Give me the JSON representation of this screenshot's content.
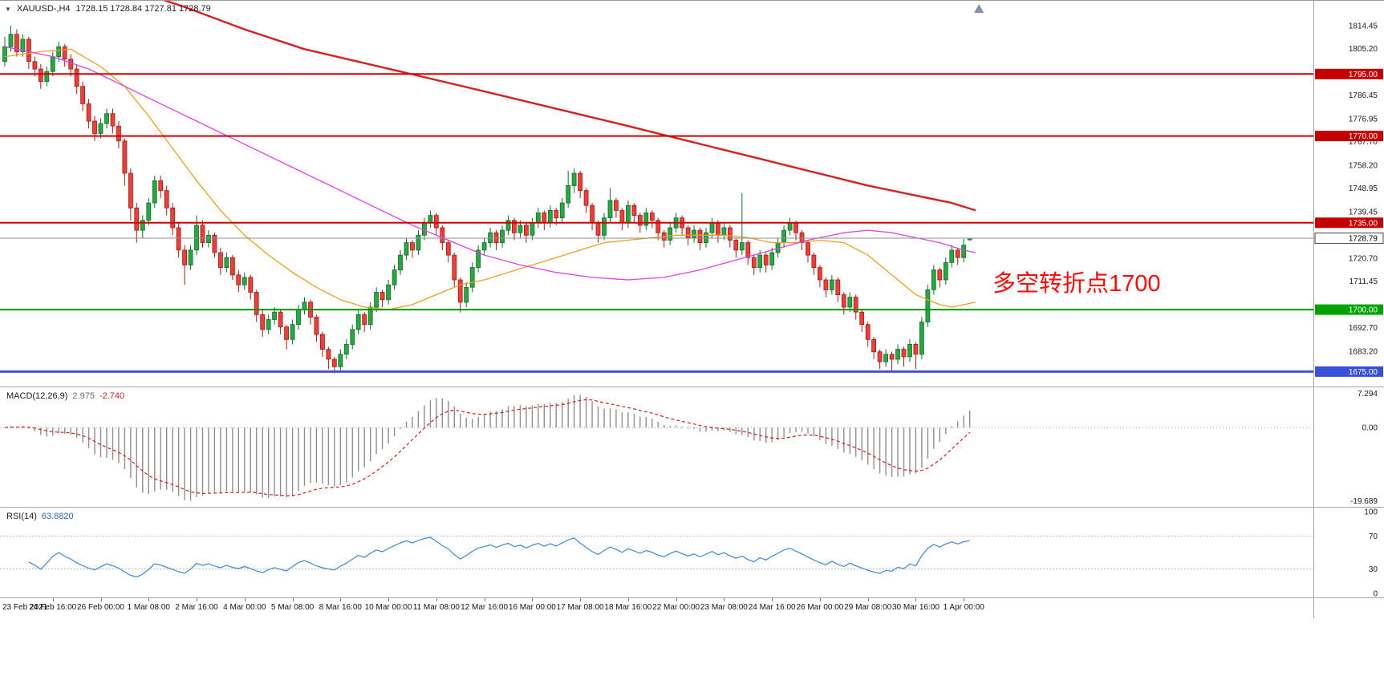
{
  "header": {
    "collapse_icon": "▼",
    "symbol": "XAUUSD-,H4",
    "ohlc": "1728.15 1728.84 1727.81 1728.79"
  },
  "annotation": {
    "text": "多空转折点1700",
    "color": "#fa0a0a"
  },
  "indicators": {
    "macd": {
      "name": "MACD(12,26,9)",
      "main_value": "2.975",
      "signal_value": "-2.740",
      "scale_top": "7.294",
      "scale_zero": "0.00",
      "scale_bottom": "-19.689"
    },
    "rsi": {
      "name": "RSI(14)",
      "value": "63.8820",
      "scale_values": [
        100,
        70,
        30,
        0
      ],
      "scale_labels": [
        "100",
        "70",
        "30",
        "0"
      ],
      "level_lines": [
        70,
        30
      ]
    }
  },
  "price_axis": {
    "ticks": [
      1814.45,
      1805.2,
      1786.45,
      1776.95,
      1767.7,
      1758.2,
      1748.95,
      1739.45,
      1720.7,
      1711.45,
      1692.7,
      1683.2
    ],
    "tick_labels": [
      "1814.45",
      "1805.20",
      "1786.45",
      "1776.95",
      "1767.70",
      "1758.20",
      "1748.95",
      "1739.45",
      "1720.70",
      "1711.45",
      "1692.70",
      "1683.20"
    ]
  },
  "chart_data": {
    "type": "candlestick",
    "symbol": "XAUUSD-",
    "timeframe": "H4",
    "ylim": [
      1669.0,
      1824.5
    ],
    "current_price": 1728.79,
    "current_tag": {
      "label": "1728.79",
      "bg": "#ffffff",
      "fg": "#000000",
      "border": "#444444"
    },
    "up_color": "#28a745",
    "up_border": "#146b2a",
    "down_color": "#e8403a",
    "down_border": "#9e1c16",
    "levels": [
      {
        "price": 1795.0,
        "label": "1795.00",
        "color": "#d10000",
        "tag_bg": "#c40000",
        "width": 2
      },
      {
        "price": 1770.0,
        "label": "1770.00",
        "color": "#d10000",
        "tag_bg": "#c40000",
        "width": 2
      },
      {
        "price": 1735.0,
        "label": "1735.00",
        "color": "#d10000",
        "tag_bg": "#c40000",
        "width": 2
      },
      {
        "price": 1700.0,
        "label": "1700.00",
        "color": "#009900",
        "tag_bg": "#00a300",
        "width": 2
      },
      {
        "price": 1675.0,
        "label": "1675.00",
        "color": "#4053d6",
        "tag_bg": "#3a50d9",
        "width": 3
      }
    ],
    "candles": [
      [
        1800,
        1810,
        1798,
        1806
      ],
      [
        1806,
        1814.4,
        1804,
        1811
      ],
      [
        1811,
        1813,
        1802,
        1804
      ],
      [
        1804,
        1811,
        1802,
        1809
      ],
      [
        1809,
        1810,
        1797,
        1800
      ],
      [
        1800,
        1802,
        1794,
        1797
      ],
      [
        1797,
        1799,
        1789,
        1792
      ],
      [
        1792,
        1798,
        1790,
        1796
      ],
      [
        1796,
        1804,
        1794,
        1802
      ],
      [
        1802,
        1808,
        1800,
        1806
      ],
      [
        1806,
        1807,
        1798,
        1801
      ],
      [
        1801,
        1803,
        1794,
        1797
      ],
      [
        1797,
        1799,
        1787,
        1790
      ],
      [
        1790,
        1792,
        1780,
        1783
      ],
      [
        1783,
        1785,
        1773,
        1776
      ],
      [
        1776,
        1778,
        1768,
        1771
      ],
      [
        1771,
        1777,
        1769,
        1775
      ],
      [
        1775,
        1781,
        1773,
        1779
      ],
      [
        1779,
        1781,
        1771,
        1774
      ],
      [
        1774,
        1776,
        1765,
        1768
      ],
      [
        1768,
        1769,
        1750,
        1755
      ],
      [
        1755,
        1757,
        1736,
        1741
      ],
      [
        1741,
        1743,
        1727,
        1732
      ],
      [
        1732,
        1738,
        1729,
        1736
      ],
      [
        1736,
        1745,
        1734,
        1743
      ],
      [
        1743,
        1754,
        1741,
        1752
      ],
      [
        1752,
        1754,
        1745,
        1748
      ],
      [
        1748,
        1750,
        1738,
        1741
      ],
      [
        1741,
        1743,
        1730,
        1733
      ],
      [
        1733,
        1735,
        1721,
        1724
      ],
      [
        1724,
        1726,
        1710,
        1718
      ],
      [
        1718,
        1726,
        1716,
        1724
      ],
      [
        1724,
        1738,
        1722,
        1734
      ],
      [
        1734,
        1736,
        1725,
        1727
      ],
      [
        1727,
        1732,
        1725,
        1730
      ],
      [
        1730,
        1731,
        1721,
        1723
      ],
      [
        1723,
        1725,
        1714,
        1717
      ],
      [
        1717,
        1723,
        1715,
        1721
      ],
      [
        1721,
        1722,
        1712,
        1714
      ],
      [
        1714,
        1716,
        1707,
        1710
      ],
      [
        1710,
        1715,
        1708,
        1713
      ],
      [
        1713,
        1714,
        1704,
        1707
      ],
      [
        1707,
        1708,
        1695,
        1698
      ],
      [
        1698,
        1700,
        1689,
        1692
      ],
      [
        1692,
        1698,
        1690,
        1696
      ],
      [
        1696,
        1701,
        1694,
        1699
      ],
      [
        1699,
        1700,
        1690,
        1693
      ],
      [
        1693,
        1694,
        1684,
        1688
      ],
      [
        1688,
        1696,
        1686,
        1694
      ],
      [
        1694,
        1702,
        1692,
        1700
      ],
      [
        1700,
        1705,
        1698,
        1703
      ],
      [
        1703,
        1704,
        1694,
        1697
      ],
      [
        1697,
        1698,
        1687,
        1690
      ],
      [
        1690,
        1691,
        1681,
        1684
      ],
      [
        1684,
        1685,
        1676,
        1680
      ],
      [
        1680,
        1681,
        1674.3,
        1677
      ],
      [
        1677,
        1684,
        1675.5,
        1682
      ],
      [
        1682,
        1688,
        1680,
        1686
      ],
      [
        1686,
        1694,
        1684,
        1692
      ],
      [
        1692,
        1700,
        1690,
        1698
      ],
      [
        1698,
        1699,
        1691,
        1694
      ],
      [
        1694,
        1703,
        1692,
        1701
      ],
      [
        1701,
        1709,
        1699,
        1707
      ],
      [
        1707,
        1708,
        1701,
        1704
      ],
      [
        1704,
        1712,
        1702,
        1710
      ],
      [
        1710,
        1718,
        1708,
        1716
      ],
      [
        1716,
        1724,
        1714,
        1722
      ],
      [
        1722,
        1729,
        1720,
        1727
      ],
      [
        1727,
        1728,
        1721,
        1724
      ],
      [
        1724,
        1732,
        1722,
        1730
      ],
      [
        1730,
        1737,
        1728,
        1735
      ],
      [
        1735,
        1740,
        1733,
        1738
      ],
      [
        1738,
        1739,
        1730,
        1733
      ],
      [
        1733,
        1734,
        1724,
        1727
      ],
      [
        1727,
        1728,
        1719,
        1722
      ],
      [
        1722,
        1723,
        1709,
        1712
      ],
      [
        1712,
        1713,
        1698.8,
        1703
      ],
      [
        1703,
        1711,
        1701,
        1709
      ],
      [
        1709,
        1719,
        1707,
        1717
      ],
      [
        1717,
        1726,
        1715,
        1724
      ],
      [
        1724,
        1729,
        1722,
        1727
      ],
      [
        1727,
        1733,
        1725,
        1731
      ],
      [
        1731,
        1732,
        1724,
        1727
      ],
      [
        1727,
        1734,
        1725,
        1732
      ],
      [
        1732,
        1738,
        1730,
        1736
      ],
      [
        1736,
        1737,
        1728,
        1731
      ],
      [
        1731,
        1736,
        1729,
        1734
      ],
      [
        1734,
        1735,
        1727,
        1730
      ],
      [
        1730,
        1737,
        1728,
        1735
      ],
      [
        1735,
        1741,
        1733,
        1739
      ],
      [
        1739,
        1740,
        1732,
        1735
      ],
      [
        1735,
        1742,
        1733,
        1740
      ],
      [
        1740,
        1741,
        1734,
        1737
      ],
      [
        1737,
        1745,
        1735,
        1743
      ],
      [
        1743,
        1756,
        1741,
        1750
      ],
      [
        1750,
        1757,
        1747,
        1755
      ],
      [
        1755,
        1756,
        1745,
        1748
      ],
      [
        1748,
        1749,
        1739,
        1742
      ],
      [
        1742,
        1743,
        1732,
        1735
      ],
      [
        1735,
        1736,
        1727,
        1730
      ],
      [
        1730,
        1739,
        1728,
        1737
      ],
      [
        1737,
        1749,
        1735,
        1744
      ],
      [
        1744,
        1745,
        1737,
        1740
      ],
      [
        1740,
        1741,
        1732,
        1735
      ],
      [
        1735,
        1744,
        1733,
        1742
      ],
      [
        1742,
        1743,
        1735,
        1738
      ],
      [
        1738,
        1739,
        1731,
        1734
      ],
      [
        1734,
        1741,
        1732,
        1739
      ],
      [
        1739,
        1740,
        1733,
        1736
      ],
      [
        1736,
        1737,
        1728,
        1731
      ],
      [
        1731,
        1732,
        1725,
        1728
      ],
      [
        1728,
        1735,
        1726,
        1733
      ],
      [
        1733,
        1739,
        1731,
        1737
      ],
      [
        1737,
        1738,
        1730,
        1733
      ],
      [
        1733,
        1734,
        1726,
        1729
      ],
      [
        1729,
        1734,
        1727,
        1732
      ],
      [
        1732,
        1733,
        1724,
        1727
      ],
      [
        1727,
        1733,
        1725,
        1731
      ],
      [
        1731,
        1737,
        1729,
        1735
      ],
      [
        1735,
        1736,
        1727,
        1730
      ],
      [
        1730,
        1735,
        1728,
        1733
      ],
      [
        1733,
        1734,
        1725,
        1728
      ],
      [
        1728,
        1729,
        1721,
        1724
      ],
      [
        1724,
        1747,
        1722,
        1727
      ],
      [
        1727,
        1728,
        1718,
        1721
      ],
      [
        1721,
        1722,
        1714,
        1717
      ],
      [
        1717,
        1724,
        1715,
        1722
      ],
      [
        1722,
        1723,
        1715,
        1718
      ],
      [
        1718,
        1725,
        1716,
        1723
      ],
      [
        1723,
        1729,
        1721,
        1727
      ],
      [
        1727,
        1734,
        1725,
        1732
      ],
      [
        1732,
        1737,
        1730,
        1735
      ],
      [
        1735,
        1736,
        1728,
        1731
      ],
      [
        1731,
        1732,
        1724,
        1727
      ],
      [
        1727,
        1728,
        1719,
        1722
      ],
      [
        1722,
        1723,
        1714,
        1717
      ],
      [
        1717,
        1718,
        1709,
        1712
      ],
      [
        1712,
        1713,
        1705,
        1708
      ],
      [
        1708,
        1714,
        1706,
        1712
      ],
      [
        1712,
        1713,
        1703,
        1706
      ],
      [
        1706,
        1707,
        1698,
        1701
      ],
      [
        1701,
        1707,
        1699,
        1705
      ],
      [
        1705,
        1706,
        1696,
        1699
      ],
      [
        1699,
        1700,
        1691,
        1694
      ],
      [
        1694,
        1695,
        1685,
        1688
      ],
      [
        1688,
        1689,
        1680,
        1683
      ],
      [
        1683,
        1684,
        1676,
        1679
      ],
      [
        1679,
        1684,
        1677,
        1682
      ],
      [
        1682,
        1683,
        1675.5,
        1680
      ],
      [
        1680,
        1686,
        1678,
        1684
      ],
      [
        1684,
        1685,
        1677,
        1681
      ],
      [
        1681,
        1688,
        1679,
        1686
      ],
      [
        1686,
        1687,
        1676,
        1682
      ],
      [
        1682,
        1697,
        1680,
        1695
      ],
      [
        1695,
        1710,
        1693,
        1708
      ],
      [
        1708,
        1718,
        1706,
        1716
      ],
      [
        1716,
        1717,
        1709,
        1712
      ],
      [
        1712,
        1721,
        1710,
        1719
      ],
      [
        1719,
        1726,
        1717,
        1724
      ],
      [
        1724,
        1725,
        1718,
        1721
      ],
      [
        1721,
        1728.5,
        1719,
        1726
      ],
      [
        1728.15,
        1728.84,
        1727.81,
        1728.79
      ]
    ],
    "moving_averages": [
      {
        "name": "fast-ma",
        "color": "#e8a020",
        "width": 1.3,
        "points": [
          [
            0,
            1802
          ],
          [
            6,
            1804
          ],
          [
            11,
            1805
          ],
          [
            16,
            1798
          ],
          [
            20,
            1790
          ],
          [
            24,
            1778
          ],
          [
            28,
            1765
          ],
          [
            32,
            1752
          ],
          [
            36,
            1740
          ],
          [
            40,
            1730
          ],
          [
            44,
            1722
          ],
          [
            48,
            1715
          ],
          [
            52,
            1709
          ],
          [
            56,
            1704
          ],
          [
            60,
            1701
          ],
          [
            64,
            1700
          ],
          [
            68,
            1702
          ],
          [
            72,
            1706
          ],
          [
            76,
            1710
          ],
          [
            80,
            1712
          ],
          [
            84,
            1715
          ],
          [
            88,
            1718
          ],
          [
            92,
            1721
          ],
          [
            96,
            1724
          ],
          [
            100,
            1727
          ],
          [
            104,
            1728
          ],
          [
            108,
            1729
          ],
          [
            112,
            1730
          ],
          [
            120,
            1730
          ],
          [
            124,
            1729
          ],
          [
            128,
            1727
          ],
          [
            132,
            1727
          ],
          [
            136,
            1728
          ],
          [
            140,
            1727
          ],
          [
            144,
            1722
          ],
          [
            148,
            1714
          ],
          [
            152,
            1706
          ],
          [
            156,
            1702
          ],
          [
            158,
            1701
          ],
          [
            160,
            1702
          ],
          [
            162,
            1703
          ]
        ]
      },
      {
        "name": "slow-ma",
        "color": "#e040e0",
        "width": 1.3,
        "points": [
          [
            0,
            1806
          ],
          [
            8,
            1802
          ],
          [
            14,
            1797
          ],
          [
            20,
            1790
          ],
          [
            26,
            1783
          ],
          [
            32,
            1776
          ],
          [
            38,
            1769
          ],
          [
            44,
            1762
          ],
          [
            50,
            1755
          ],
          [
            56,
            1748
          ],
          [
            62,
            1741
          ],
          [
            68,
            1734
          ],
          [
            74,
            1728
          ],
          [
            80,
            1722
          ],
          [
            86,
            1718
          ],
          [
            92,
            1715
          ],
          [
            98,
            1713
          ],
          [
            104,
            1712
          ],
          [
            110,
            1713
          ],
          [
            116,
            1716
          ],
          [
            122,
            1720
          ],
          [
            128,
            1724
          ],
          [
            134,
            1728
          ],
          [
            140,
            1731
          ],
          [
            144,
            1732
          ],
          [
            148,
            1731
          ],
          [
            152,
            1729
          ],
          [
            156,
            1727
          ],
          [
            160,
            1724
          ],
          [
            162,
            1723
          ]
        ]
      },
      {
        "name": "long-ma",
        "color": "#d42020",
        "width": 2.4,
        "points": [
          [
            20,
            1830
          ],
          [
            30,
            1822
          ],
          [
            40,
            1813
          ],
          [
            50,
            1805
          ],
          [
            66,
            1796
          ],
          [
            80,
            1788
          ],
          [
            92,
            1781
          ],
          [
            104,
            1774
          ],
          [
            114,
            1768
          ],
          [
            124,
            1762
          ],
          [
            134,
            1756
          ],
          [
            144,
            1750
          ],
          [
            152,
            1746
          ],
          [
            158,
            1743
          ],
          [
            162,
            1740
          ]
        ]
      }
    ],
    "time_labels": [
      "23 Feb 2021",
      "24 Feb 16:00",
      "26 Feb 00:00",
      "1 Mar 08:00",
      "2 Mar 16:00",
      "4 Mar 00:00",
      "5 Mar 08:00",
      "8 Mar 16:00",
      "10 Mar 00:00",
      "11 Mar 08:00",
      "12 Mar 16:00",
      "16 Mar 00:00",
      "17 Mar 08:00",
      "18 Mar 16:00",
      "22 Mar 00:00",
      "23 Mar 08:00",
      "24 Mar 16:00",
      "26 Mar 00:00",
      "29 Mar 08:00",
      "30 Mar 16:00",
      "1 Apr 00:00"
    ],
    "candles_per_label": 8
  }
}
